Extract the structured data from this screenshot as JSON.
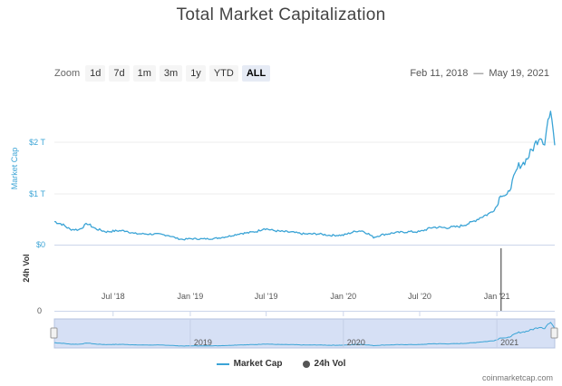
{
  "chart_data": {
    "type": "line",
    "title": "Total Market Capitalization",
    "zoom_label": "Zoom",
    "zoom_buttons": [
      "1d",
      "7d",
      "1m",
      "3m",
      "1y",
      "YTD",
      "ALL"
    ],
    "active_zoom": "ALL",
    "range_from": "Feb 11, 2018",
    "range_sep": "—",
    "range_to": "May 19, 2021",
    "ylabel": "Market Cap",
    "y_ticks": [
      "$0",
      "$1 T",
      "$2 T"
    ],
    "ylim": [
      0,
      2600
    ],
    "vol_label": "24h Vol",
    "vol_tick": "0",
    "x_ticks": [
      "Jul '18",
      "Jan '19",
      "Jul '19",
      "Jan '20",
      "Jul '20",
      "Jan '21"
    ],
    "navigator_ticks": [
      "2019",
      "2020",
      "2021"
    ],
    "series": [
      {
        "name": "Market Cap",
        "color": "#3ba4d6",
        "unit": "billion USD",
        "x": [
          "2018-02-11",
          "2018-03-01",
          "2018-03-20",
          "2018-04-10",
          "2018-05-01",
          "2018-05-20",
          "2018-06-15",
          "2018-07-10",
          "2018-08-01",
          "2018-08-20",
          "2018-09-10",
          "2018-10-01",
          "2018-10-20",
          "2018-11-10",
          "2018-12-01",
          "2018-12-15",
          "2019-01-01",
          "2019-02-01",
          "2019-03-01",
          "2019-04-01",
          "2019-05-01",
          "2019-05-20",
          "2019-06-10",
          "2019-06-26",
          "2019-07-15",
          "2019-08-01",
          "2019-09-01",
          "2019-10-01",
          "2019-11-01",
          "2019-12-01",
          "2020-01-01",
          "2020-02-01",
          "2020-02-14",
          "2020-03-01",
          "2020-03-13",
          "2020-04-01",
          "2020-05-01",
          "2020-06-01",
          "2020-07-01",
          "2020-08-01",
          "2020-09-01",
          "2020-10-01",
          "2020-11-01",
          "2020-11-25",
          "2020-12-15",
          "2021-01-01",
          "2021-01-10",
          "2021-01-25",
          "2021-02-10",
          "2021-02-22",
          "2021-03-05",
          "2021-03-15",
          "2021-04-01",
          "2021-04-14",
          "2021-04-25",
          "2021-05-03",
          "2021-05-12",
          "2021-05-19"
        ],
        "values": [
          460,
          410,
          310,
          300,
          420,
          320,
          260,
          280,
          280,
          225,
          220,
          215,
          210,
          190,
          130,
          110,
          125,
          120,
          130,
          170,
          230,
          240,
          270,
          330,
          290,
          270,
          250,
          215,
          220,
          190,
          195,
          275,
          280,
          220,
          150,
          200,
          240,
          260,
          260,
          350,
          340,
          360,
          440,
          550,
          620,
          760,
          1000,
          950,
          1300,
          1550,
          1600,
          1700,
          1950,
          2150,
          2000,
          2450,
          2550,
          1950
        ]
      },
      {
        "name": "24h Vol",
        "color": "#555555",
        "x": [
          "2021-01-11"
        ],
        "values": [
          1
        ]
      }
    ],
    "legend_position": "bottom-center",
    "credit": "coinmarketcap.com"
  }
}
